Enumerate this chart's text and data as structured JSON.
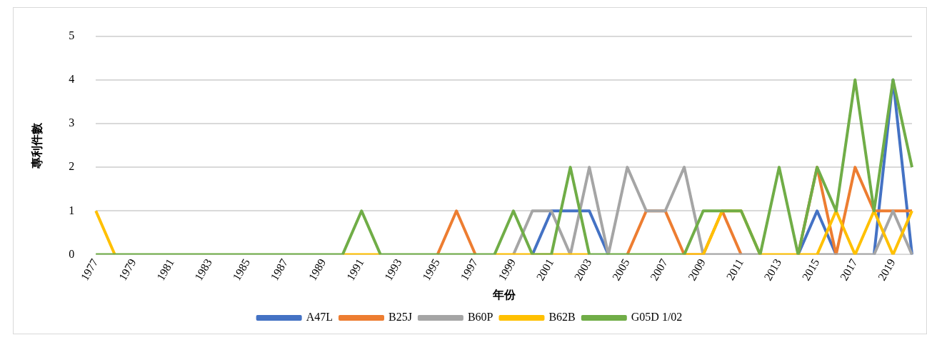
{
  "chart_data": {
    "type": "line",
    "xlabel": "年份",
    "ylabel": "專利件數",
    "categories": [
      "1977",
      null,
      "1979",
      null,
      "1981",
      null,
      "1983",
      null,
      "1985",
      null,
      "1987",
      null,
      "1989",
      null,
      "1991",
      null,
      "1993",
      null,
      "1995",
      null,
      "1997",
      null,
      "1999",
      null,
      "2001",
      null,
      "2003",
      null,
      "2005",
      null,
      "2007",
      null,
      "2009",
      null,
      "2011",
      null,
      "2013",
      null,
      "2015",
      null,
      "2017",
      null,
      "2019",
      null
    ],
    "series": [
      {
        "name": "A47L",
        "color": "#4472c4",
        "values": [
          null,
          null,
          null,
          null,
          null,
          null,
          null,
          null,
          null,
          null,
          null,
          null,
          null,
          null,
          null,
          null,
          null,
          null,
          null,
          null,
          null,
          null,
          null,
          0,
          1,
          1,
          1,
          0,
          null,
          null,
          null,
          null,
          null,
          null,
          null,
          null,
          null,
          0,
          1,
          0,
          null,
          0,
          4,
          0
        ]
      },
      {
        "name": "B25J",
        "color": "#ed7d31",
        "values": [
          null,
          null,
          null,
          null,
          null,
          null,
          null,
          null,
          null,
          null,
          null,
          null,
          null,
          null,
          null,
          null,
          null,
          null,
          0,
          1,
          0,
          null,
          null,
          null,
          null,
          null,
          null,
          null,
          0,
          1,
          1,
          0,
          0,
          1,
          0,
          null,
          null,
          0,
          2,
          0,
          2,
          1,
          1,
          1
        ]
      },
      {
        "name": "B60P",
        "color": "#a5a5a5",
        "values": [
          null,
          null,
          null,
          null,
          null,
          null,
          null,
          null,
          null,
          null,
          null,
          null,
          null,
          null,
          null,
          null,
          null,
          null,
          null,
          null,
          null,
          null,
          0,
          1,
          1,
          0,
          2,
          0,
          2,
          1,
          1,
          2,
          0,
          0,
          0,
          0,
          null,
          null,
          0,
          0,
          0,
          0,
          1,
          0
        ]
      },
      {
        "name": "B62B",
        "color": "#ffc000",
        "values": [
          1,
          0,
          null,
          null,
          null,
          null,
          null,
          null,
          null,
          null,
          null,
          null,
          null,
          0,
          0,
          0,
          null,
          null,
          null,
          null,
          null,
          0,
          0,
          0,
          0,
          0,
          0,
          null,
          null,
          null,
          null,
          0,
          0,
          1,
          1,
          0,
          0,
          0,
          0,
          1,
          0,
          1,
          0,
          1
        ]
      },
      {
        "name": "G05D 1/02",
        "color": "#70ad47",
        "values": [
          0,
          0,
          0,
          0,
          0,
          0,
          0,
          0,
          0,
          0,
          0,
          0,
          0,
          0,
          1,
          0,
          0,
          0,
          0,
          0,
          0,
          0,
          1,
          0,
          0,
          2,
          0,
          0,
          0,
          0,
          0,
          0,
          1,
          1,
          1,
          0,
          2,
          0,
          2,
          1,
          4,
          1,
          4,
          2
        ]
      }
    ],
    "ylim": [
      0,
      5
    ],
    "yticks": [
      0,
      1,
      2,
      3,
      4,
      5
    ],
    "grid": "y",
    "legend": "bottom",
    "marker": "none",
    "line_style": "solid"
  }
}
